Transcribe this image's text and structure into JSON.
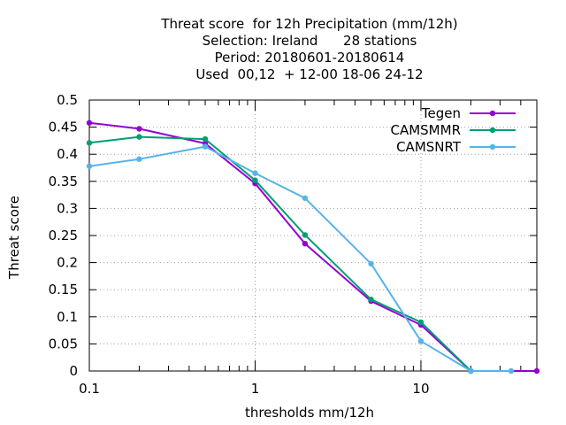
{
  "chart_data": {
    "type": "line",
    "title": [
      "Threat score  for 12h Precipitation (mm/12h)",
      "Selection: Ireland      28 stations",
      "Period: 20180601-20180614",
      "Used  00,12  + 12-00 18-06 24-12"
    ],
    "xlabel": "thresholds mm/12h",
    "ylabel": "Threat score",
    "x_scale": "log",
    "xlim": [
      0.1,
      50
    ],
    "ylim": [
      0,
      0.5
    ],
    "x_ticks": [
      {
        "value": 0.1,
        "label": "0.1"
      },
      {
        "value": 1,
        "label": "1"
      },
      {
        "value": 10,
        "label": "10"
      }
    ],
    "x_minor_ticks": [
      0.2,
      0.5,
      2,
      5,
      20,
      50
    ],
    "y_ticks": [
      {
        "value": 0,
        "label": "0"
      },
      {
        "value": 0.05,
        "label": "0.05"
      },
      {
        "value": 0.1,
        "label": "0.1"
      },
      {
        "value": 0.15,
        "label": "0.15"
      },
      {
        "value": 0.2,
        "label": "0.2"
      },
      {
        "value": 0.25,
        "label": "0.25"
      },
      {
        "value": 0.3,
        "label": "0.3"
      },
      {
        "value": 0.35,
        "label": "0.35"
      },
      {
        "value": 0.4,
        "label": "0.4"
      },
      {
        "value": 0.45,
        "label": "0.45"
      },
      {
        "value": 0.5,
        "label": "0.5"
      }
    ],
    "grid": true,
    "legend_position": "top-right",
    "x": [
      0.1,
      0.2,
      0.5,
      1,
      2,
      5,
      10,
      20,
      35,
      50
    ],
    "series": [
      {
        "name": "Tegen",
        "color": "#9400d3",
        "values": [
          0.458,
          0.447,
          0.42,
          0.346,
          0.235,
          0.129,
          0.085,
          0.0,
          null,
          0.0
        ]
      },
      {
        "name": "CAMSMMR",
        "color": "#009e73",
        "values": [
          0.421,
          0.432,
          0.428,
          0.352,
          0.251,
          0.132,
          0.09,
          0.0,
          null,
          null
        ]
      },
      {
        "name": "CAMSNRT",
        "color": "#56b4e9",
        "values": [
          0.378,
          0.391,
          0.414,
          0.365,
          0.319,
          0.198,
          0.055,
          0.0,
          0.0,
          null
        ]
      }
    ]
  }
}
